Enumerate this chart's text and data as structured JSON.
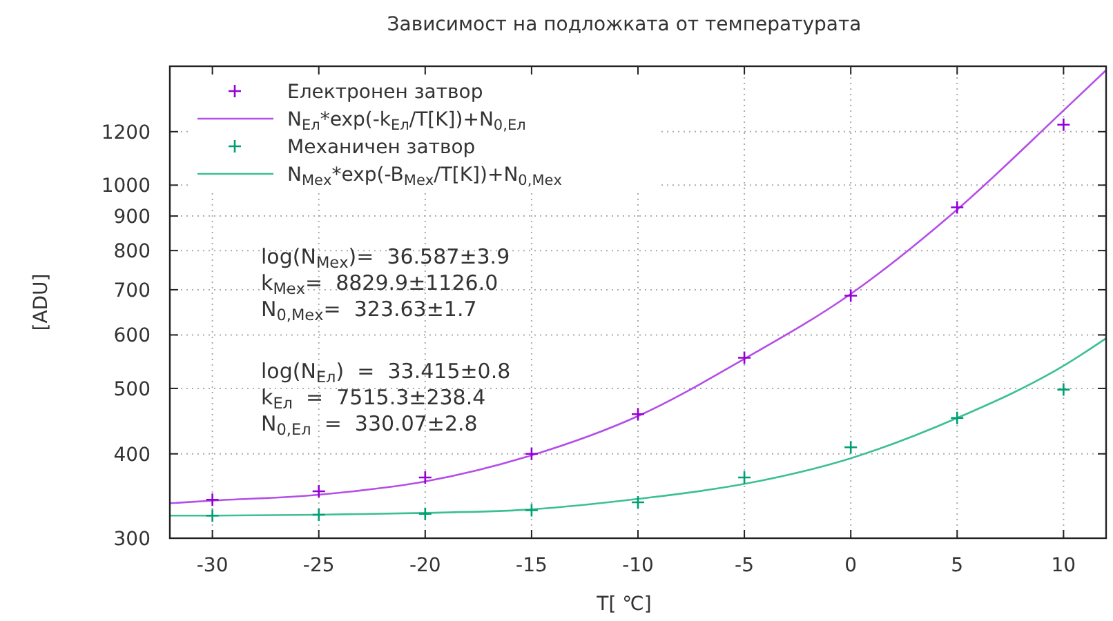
{
  "chart_data": {
    "type": "scatter",
    "title": "Зависимост на подложката от температурата",
    "xlabel": "T[ ℃]",
    "ylabel": "[ADU]",
    "xlim": [
      -32,
      12
    ],
    "xticks": [
      -30,
      -25,
      -20,
      -15,
      -10,
      -5,
      0,
      5,
      10
    ],
    "ylim": [
      300,
      1500
    ],
    "yticks": [
      300,
      400,
      500,
      600,
      700,
      800,
      900,
      1000,
      1200
    ],
    "log": "y",
    "grid": true,
    "legend": "top left",
    "series": [
      {
        "name": "Електронен затвор",
        "marker": "cross",
        "color": "#9400d3",
        "x": [
          -30,
          -25,
          -20,
          -15,
          -10,
          -5,
          0,
          5,
          10
        ],
        "values": [
          342,
          352,
          369,
          400,
          458,
          555,
          686,
          927,
          1229
        ]
      },
      {
        "name": "N$_{Ел}$*exp(-k$_{Ел}$/T[K])+N$_{0,Ел}$",
        "type": "line",
        "color": "#b44ee8",
        "x": [
          -32,
          -30,
          -25,
          -20,
          -15,
          -10,
          -5,
          0,
          5,
          10,
          12
        ],
        "values": [
          338,
          341,
          348,
          364,
          398,
          455,
          553,
          690,
          920,
          1290,
          1480
        ]
      },
      {
        "name": "Механичен затвор",
        "marker": "cross",
        "color": "#009e73",
        "x": [
          -30,
          -25,
          -20,
          -15,
          -10,
          -5,
          0,
          5,
          10
        ],
        "values": [
          324,
          325,
          326,
          330,
          339,
          369,
          409,
          452,
          498
        ]
      },
      {
        "name": "N$_{Мех}$*exp(-B$_{Мех}$/T[K])+N$_{0,Мех}$",
        "type": "line",
        "color": "#3cbf95",
        "x": [
          -32,
          -30,
          -25,
          -20,
          -15,
          -10,
          -5,
          0,
          5,
          10,
          12
        ],
        "values": [
          324,
          324,
          325,
          327,
          331,
          343,
          361,
          394,
          452,
          540,
          593
        ]
      }
    ],
    "annotations": [
      "log(N$_{Мех}$)=  36.587±3.9",
      "k$_{Мех}$=  8829.9±1126.0",
      "N$_{0,Мех}$=  323.63±1.7",
      "log(N$_{Ел}$)  =  33.415±0.8",
      "k$_{Ел}$  =  7515.3±238.4",
      "N$_{0,Ел}$  =  330.07±2.8"
    ]
  }
}
